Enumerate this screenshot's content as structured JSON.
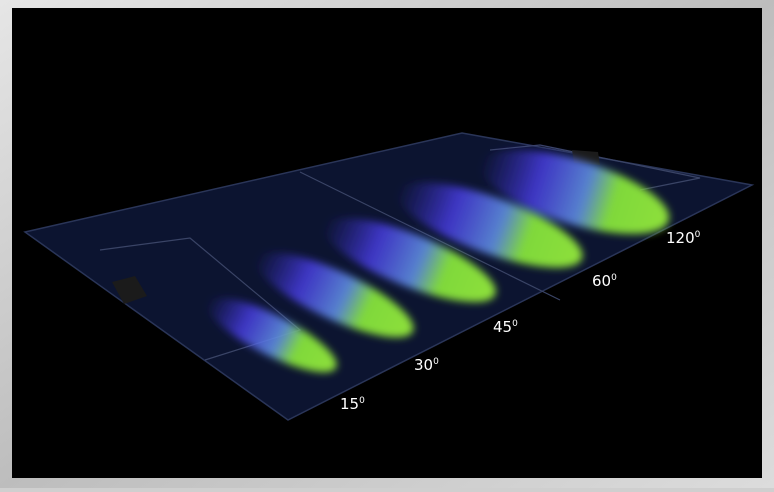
{
  "labels": [
    {
      "angle": "15",
      "unit": "0"
    },
    {
      "angle": "30",
      "unit": "0"
    },
    {
      "angle": "45",
      "unit": "0"
    },
    {
      "angle": "60",
      "unit": "0"
    },
    {
      "angle": "120",
      "unit": "0"
    }
  ]
}
